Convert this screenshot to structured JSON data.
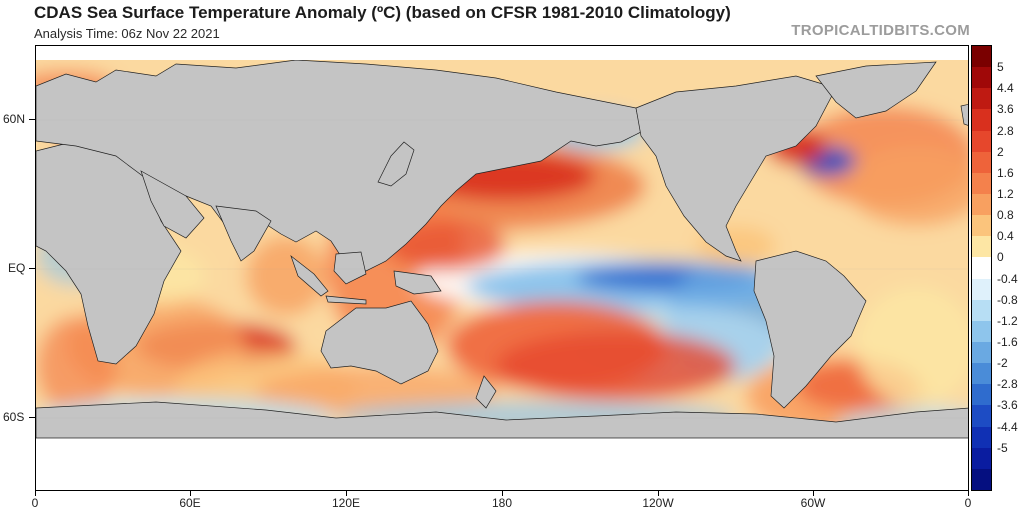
{
  "header": {
    "title": "CDAS Sea Surface Temperature Anomaly (ºC) (based on CFSR 1981-2010 Climatology)",
    "subtitle": "Analysis Time: 06z Nov 22 2021",
    "credit": "TROPICALTIDBITS.COM"
  },
  "map": {
    "lat_labels": [
      "60N",
      "EQ",
      "60S"
    ],
    "lon_labels": [
      "0",
      "60E",
      "120E",
      "180",
      "120W",
      "60W",
      "0"
    ],
    "land_color": "#c4c4c4",
    "ice_color": "#ffffff"
  },
  "colorbar": {
    "labels": [
      "5",
      "4.4",
      "3.6",
      "2.8",
      "2",
      "1.6",
      "1.2",
      "0.8",
      "0.4",
      "0",
      "-0.4",
      "-0.8",
      "-1.2",
      "-1.6",
      "-2",
      "-2.8",
      "-3.6",
      "-4.4",
      "-5"
    ],
    "colors": [
      "#7a0000",
      "#a00808",
      "#bf1a12",
      "#d9301e",
      "#e6472c",
      "#ee633a",
      "#f4814c",
      "#f8a060",
      "#fbc47c",
      "#fde6a4",
      "#ffffff",
      "#dff1fb",
      "#b7def4",
      "#8ec5ec",
      "#6aa9e2",
      "#4a8cd8",
      "#2f6cce",
      "#1d4cc4",
      "#1030b4",
      "#0a1ca0",
      "#050f80"
    ]
  },
  "chart_data": {
    "type": "heatmap",
    "title": "CDAS Sea Surface Temperature Anomaly (ºC) (based on CFSR 1981-2010 Climatology)",
    "subtitle": "Analysis Time: 06z Nov 22 2021",
    "x_ticks": [
      "0",
      "60E",
      "120E",
      "180",
      "120W",
      "60W",
      "0"
    ],
    "y_ticks": [
      "60N",
      "EQ",
      "60S"
    ],
    "colorbar_ticks": [
      5,
      4.4,
      3.6,
      2.8,
      2,
      1.6,
      1.2,
      0.8,
      0.4,
      0,
      -0.4,
      -0.8,
      -1.2,
      -1.6,
      -2,
      -2.8,
      -3.6,
      -4.4,
      -5
    ],
    "regions": [
      {
        "region": "Equatorial central-eastern Pacific",
        "anomaly": -1.6
      },
      {
        "region": "North Pacific mid-latitudes",
        "anomaly": 2.0
      },
      {
        "region": "South Pacific subtropics",
        "anomaly": 2.0
      },
      {
        "region": "Southern Indian Ocean",
        "anomaly": 2.8
      },
      {
        "region": "Western Pacific warm pool",
        "anomaly": 1.2
      },
      {
        "region": "North Atlantic",
        "anomaly": 1.2
      },
      {
        "region": "Southern Ocean",
        "anomaly": -0.8
      }
    ]
  }
}
